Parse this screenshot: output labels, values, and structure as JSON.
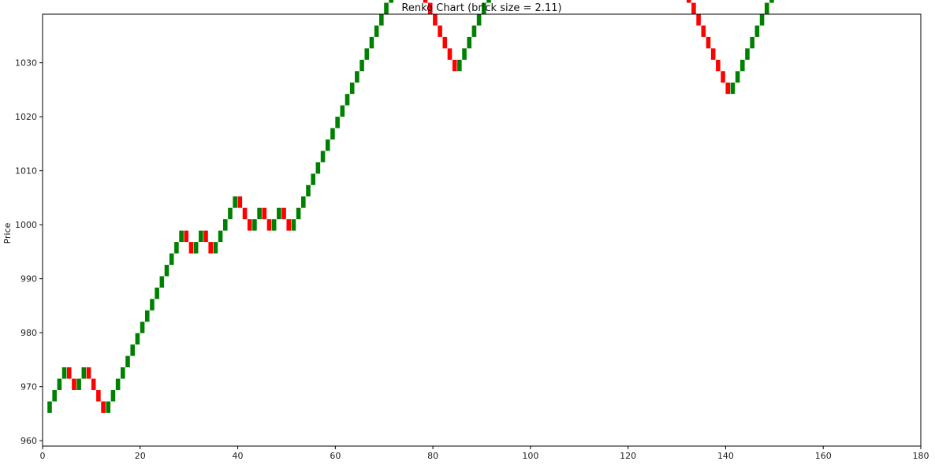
{
  "chart_data": {
    "type": "renko",
    "title": "Renko Chart (brick size = 2.11)",
    "xlabel": "",
    "ylabel": "Price",
    "brick_size": 2.11,
    "start_price": 965.15,
    "xlim": [
      0,
      180
    ],
    "ylim": [
      959,
      1039
    ],
    "x_ticks": [
      0,
      20,
      40,
      60,
      80,
      100,
      120,
      140,
      160,
      180
    ],
    "y_ticks": [
      960,
      970,
      980,
      990,
      1000,
      1010,
      1020,
      1030
    ],
    "grid": false,
    "colors": {
      "up": "#008000",
      "down": "#ff0000"
    },
    "directions": [
      1,
      1,
      1,
      1,
      -1,
      -1,
      1,
      1,
      -1,
      -1,
      -1,
      -1,
      1,
      1,
      1,
      1,
      1,
      1,
      1,
      1,
      1,
      1,
      1,
      1,
      1,
      1,
      1,
      1,
      -1,
      -1,
      1,
      1,
      -1,
      -1,
      1,
      1,
      1,
      1,
      1,
      -1,
      -1,
      -1,
      1,
      1,
      -1,
      -1,
      1,
      1,
      -1,
      -1,
      1,
      1,
      1,
      1,
      1,
      1,
      1,
      1,
      1,
      1,
      1,
      1,
      1,
      1,
      1,
      1,
      1,
      1,
      1,
      1,
      1,
      1,
      1,
      1,
      -1,
      -1,
      -1,
      -1,
      -1,
      -1,
      -1,
      -1,
      -1,
      -1,
      1,
      1,
      1,
      1,
      1,
      1,
      1,
      1,
      1,
      1,
      1,
      1,
      -1,
      -1,
      -1,
      -1,
      1,
      1,
      1,
      1,
      1,
      1,
      1,
      1,
      1,
      1,
      1,
      -1,
      -1,
      -1,
      1,
      1,
      -1,
      -1,
      -1,
      -1,
      -1,
      -1,
      -1,
      1,
      1,
      -1,
      -1,
      -1,
      -1,
      -1,
      -1,
      -1,
      -1,
      -1,
      -1,
      -1,
      -1,
      -1,
      -1,
      -1,
      1,
      1,
      1,
      1,
      1,
      1,
      1,
      1,
      1,
      1,
      1,
      1,
      -1,
      -1,
      1,
      1,
      1,
      -1,
      -1,
      1,
      1,
      1,
      1,
      1,
      -1,
      -1,
      1,
      1,
      1,
      -1,
      -1,
      -1,
      1,
      1,
      1,
      1,
      -1,
      -1,
      1,
      1,
      -1,
      -1,
      -1,
      -1,
      -1,
      1,
      1,
      -1,
      -1,
      -1,
      1,
      1,
      1,
      1,
      -1,
      -1
    ]
  }
}
